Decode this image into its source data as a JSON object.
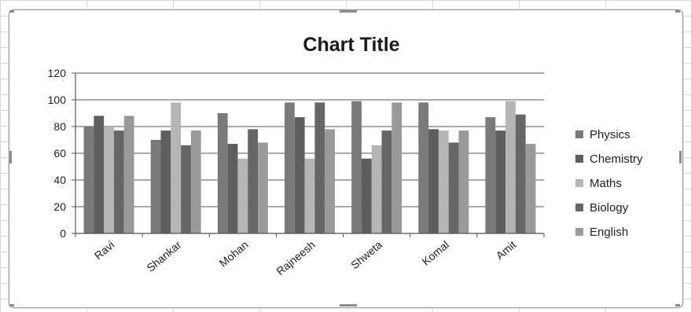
{
  "chart_data": {
    "type": "bar",
    "title": "Chart Title",
    "categories": [
      "Ravi",
      "Shankar",
      "Mohan",
      "Rajneesh",
      "Shweta",
      "Komal",
      "Amit"
    ],
    "series": [
      {
        "name": "Physics",
        "color": "#7a7a7a",
        "values": [
          80,
          70,
          90,
          98,
          99,
          98,
          87
        ]
      },
      {
        "name": "Chemistry",
        "color": "#5e5e5e",
        "values": [
          88,
          77,
          67,
          87,
          56,
          78,
          77
        ]
      },
      {
        "name": "Maths",
        "color": "#b5b5b5",
        "values": [
          80,
          98,
          56,
          56,
          66,
          77,
          99
        ]
      },
      {
        "name": "Biology",
        "color": "#666666",
        "values": [
          77,
          66,
          78,
          98,
          77,
          68,
          89
        ]
      },
      {
        "name": "English",
        "color": "#9a9a9a",
        "values": [
          88,
          77,
          68,
          78,
          98,
          77,
          67
        ]
      }
    ],
    "ylim": [
      0,
      120
    ],
    "yticks": [
      0,
      20,
      40,
      60,
      80,
      100,
      120
    ],
    "grid": true,
    "legend_position": "right"
  }
}
